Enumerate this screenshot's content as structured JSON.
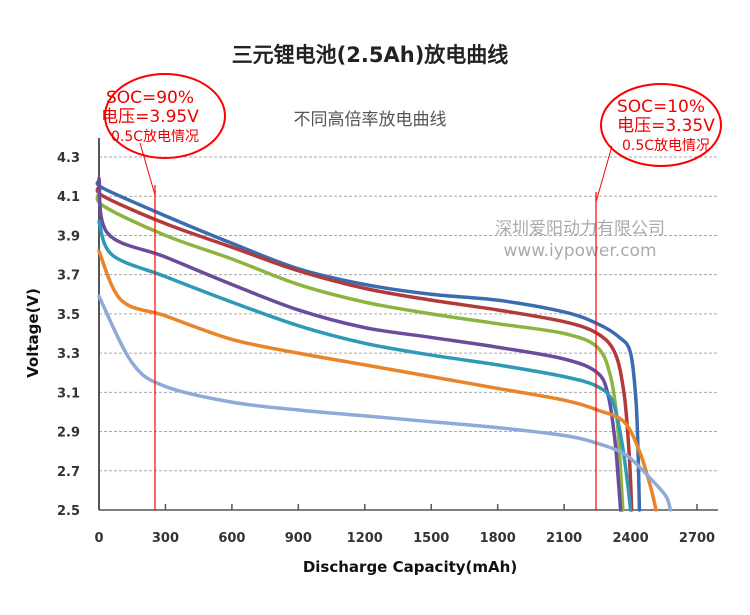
{
  "chart_data": {
    "type": "line",
    "title": "三元锂电池(2.5Ah)放电曲线",
    "subtitle": "不同高倍率放电曲线",
    "xlabel": "Discharge Capacity(mAh)",
    "ylabel": "Voltage(V)",
    "xlim": [
      0,
      2700
    ],
    "ylim": [
      2.5,
      4.3
    ],
    "xticks": [
      "0",
      "300",
      "600",
      "900",
      "1200",
      "1500",
      "1800",
      "2100",
      "2400",
      "2700"
    ],
    "yticks": [
      "2.5",
      "2.7",
      "2.9",
      "3.1",
      "3.3",
      "3.5",
      "3.7",
      "3.9",
      "4.1",
      "4.3"
    ],
    "grid": "horizontal dashed",
    "series": [
      {
        "color": "#3b6cb0",
        "x": [
          0,
          20,
          300,
          600,
          900,
          1200,
          1500,
          1800,
          2100,
          2250,
          2350,
          2400,
          2425,
          2435,
          2440
        ],
        "y": [
          4.18,
          4.14,
          4.0,
          3.86,
          3.73,
          3.65,
          3.6,
          3.57,
          3.51,
          3.45,
          3.38,
          3.3,
          3.05,
          2.75,
          2.5
        ]
      },
      {
        "color": "#b33a3a",
        "x": [
          0,
          20,
          300,
          600,
          900,
          1200,
          1500,
          1800,
          2100,
          2250,
          2330,
          2370,
          2390,
          2400,
          2405
        ],
        "y": [
          4.15,
          4.1,
          3.96,
          3.84,
          3.72,
          3.63,
          3.57,
          3.52,
          3.46,
          3.4,
          3.3,
          3.1,
          2.85,
          2.65,
          2.5
        ]
      },
      {
        "color": "#8db43e",
        "x": [
          0,
          20,
          300,
          600,
          900,
          1200,
          1500,
          1800,
          2100,
          2250,
          2310,
          2340,
          2355,
          2365
        ],
        "y": [
          4.12,
          4.05,
          3.9,
          3.78,
          3.65,
          3.56,
          3.5,
          3.45,
          3.4,
          3.33,
          3.18,
          2.95,
          2.7,
          2.5
        ]
      },
      {
        "color": "#6a4c9c",
        "x": [
          0,
          40,
          300,
          600,
          900,
          1200,
          1500,
          1800,
          2100,
          2250,
          2300,
          2330,
          2345,
          2355
        ],
        "y": [
          4.19,
          3.91,
          3.79,
          3.65,
          3.52,
          3.43,
          3.38,
          3.33,
          3.27,
          3.2,
          3.08,
          2.85,
          2.65,
          2.5
        ]
      },
      {
        "color": "#2e9ab6",
        "x": [
          0,
          60,
          300,
          600,
          900,
          1200,
          1500,
          1800,
          2100,
          2250,
          2320,
          2360,
          2385,
          2400
        ],
        "y": [
          3.97,
          3.8,
          3.69,
          3.56,
          3.44,
          3.35,
          3.29,
          3.24,
          3.18,
          3.13,
          3.05,
          2.85,
          2.65,
          2.5
        ]
      },
      {
        "color": "#e98428",
        "x": [
          0,
          100,
          300,
          600,
          900,
          1200,
          1500,
          1800,
          2100,
          2250,
          2370,
          2440,
          2490,
          2515
        ],
        "y": [
          3.82,
          3.57,
          3.49,
          3.37,
          3.3,
          3.24,
          3.18,
          3.12,
          3.06,
          3.01,
          2.95,
          2.8,
          2.62,
          2.5
        ]
      },
      {
        "color": "#8faad8",
        "x": [
          0,
          150,
          300,
          600,
          900,
          1200,
          1500,
          1800,
          2100,
          2250,
          2380,
          2490,
          2560,
          2580
        ],
        "y": [
          3.59,
          3.25,
          3.13,
          3.05,
          3.01,
          2.98,
          2.95,
          2.92,
          2.88,
          2.84,
          2.78,
          2.66,
          2.57,
          2.5
        ]
      }
    ],
    "annotations": [
      {
        "lines": [
          "SOC=90%",
          "电压=3.95V",
          "0.5C放电情况"
        ],
        "x": 250,
        "color": "#ff0000"
      },
      {
        "lines": [
          "SOC=10%",
          "电压=3.35V",
          "0.5C放电情况"
        ],
        "x": 2240,
        "color": "#ff0000"
      }
    ]
  },
  "watermark": {
    "line1": "深圳爱阳动力有限公司",
    "line2": "www.iypower.com"
  }
}
